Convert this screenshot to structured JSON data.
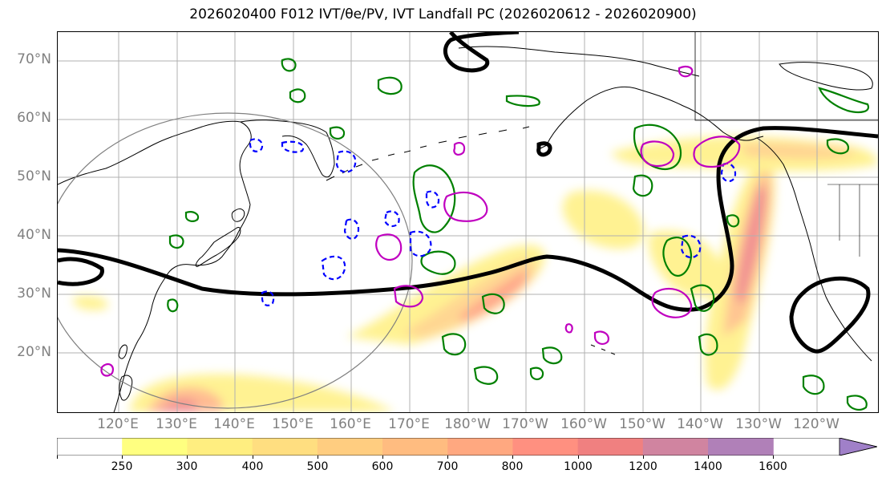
{
  "title": "2026020400 F012 IVT/θe/PV, IVT Landfall PC (2026020612 - 2026020900)",
  "lat_labels": [
    "70°N",
    "60°N",
    "50°N",
    "40°N",
    "30°N",
    "20°N"
  ],
  "lon_labels": [
    "120°E",
    "130°E",
    "140°E",
    "150°E",
    "160°E",
    "170°E",
    "180°W",
    "170°W",
    "160°W",
    "150°W",
    "140°W",
    "130°W",
    "120°W"
  ],
  "colorbar": {
    "labels": [
      "250",
      "300",
      "400",
      "500",
      "600",
      "700",
      "800",
      "1000",
      "1200",
      "1400",
      "1600"
    ],
    "colors": [
      "#ffffff",
      "#ffff80",
      "#ffee80",
      "#ffde80",
      "#ffcd80",
      "#ffbc80",
      "#ffa880",
      "#ff9080",
      "#f08080",
      "#d084a0",
      "#b080b8",
      "#a080c8"
    ]
  },
  "colors": {
    "land_outline": "#000000",
    "thick_contour": "#000000",
    "green_contour": "#008000",
    "blue_dashed_contour": "#0000ff",
    "magenta_contour": "#c000c0",
    "range_circle": "#808080",
    "grid": "#b0b0b0"
  }
}
